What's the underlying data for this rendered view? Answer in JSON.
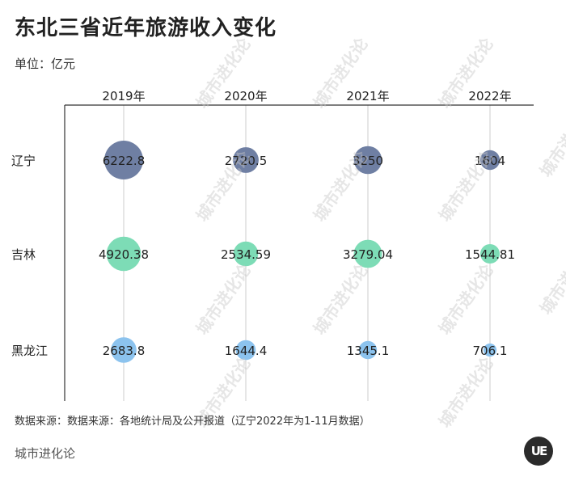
{
  "header": {
    "title": "东北三省近年旅游收入变化",
    "unit": "单位：亿元"
  },
  "footer": {
    "source": "数据来源：数据来源：各地统计局及公开报道（辽宁2022年为1-11月数据）",
    "brand": "城市进化论",
    "logo": "UE"
  },
  "watermark": {
    "text": "城市进化论"
  },
  "colors": {
    "辽宁": "#6f7fa3",
    "吉林": "#7ddcb6",
    "黑龙江": "#8cc3ee",
    "axis": "#333333",
    "grid": "#cccccc"
  },
  "chart_data": {
    "type": "bubble",
    "title": "东北三省近年旅游收入变化",
    "columns": [
      "2019年",
      "2020年",
      "2021年",
      "2022年"
    ],
    "rows": [
      "辽宁",
      "吉林",
      "黑龙江"
    ],
    "values": [
      [
        6222.8,
        2720.5,
        3250,
        1604
      ],
      [
        4920.38,
        2534.59,
        3279.04,
        1544.81
      ],
      [
        2683.8,
        1644.4,
        1345.1,
        706.1
      ]
    ],
    "value_labels": [
      [
        "6222.8",
        "2720.5",
        "3250",
        "1604"
      ],
      [
        "4920.38",
        "2534.59",
        "3279.04",
        "1544.81"
      ],
      [
        "2683.8",
        "1644.4",
        "1345.1",
        "706.1"
      ]
    ],
    "grid": true
  }
}
